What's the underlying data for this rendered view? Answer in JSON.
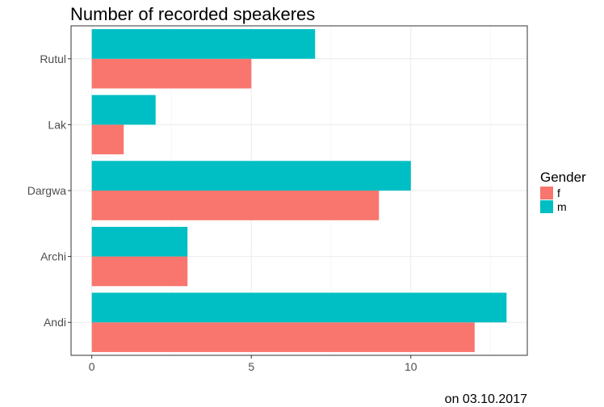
{
  "chart_data": {
    "type": "bar",
    "orientation": "horizontal",
    "title": "Number of recorded speakeres",
    "caption": "on 03.10.2017",
    "xlabel": "",
    "ylabel": "",
    "categories": [
      "Andi",
      "Archi",
      "Dargwa",
      "Lak",
      "Rutul"
    ],
    "xlim": [
      -0.65,
      13.65
    ],
    "xticks": [
      0,
      5,
      10
    ],
    "grid": true,
    "legend": {
      "title": "Gender",
      "placement": "right"
    },
    "series": [
      {
        "name": "f",
        "color": "#F8766D",
        "values": [
          12,
          3,
          9,
          1,
          5
        ]
      },
      {
        "name": "m",
        "color": "#00BFC4",
        "values": [
          13,
          3,
          10,
          2,
          7
        ]
      }
    ]
  }
}
